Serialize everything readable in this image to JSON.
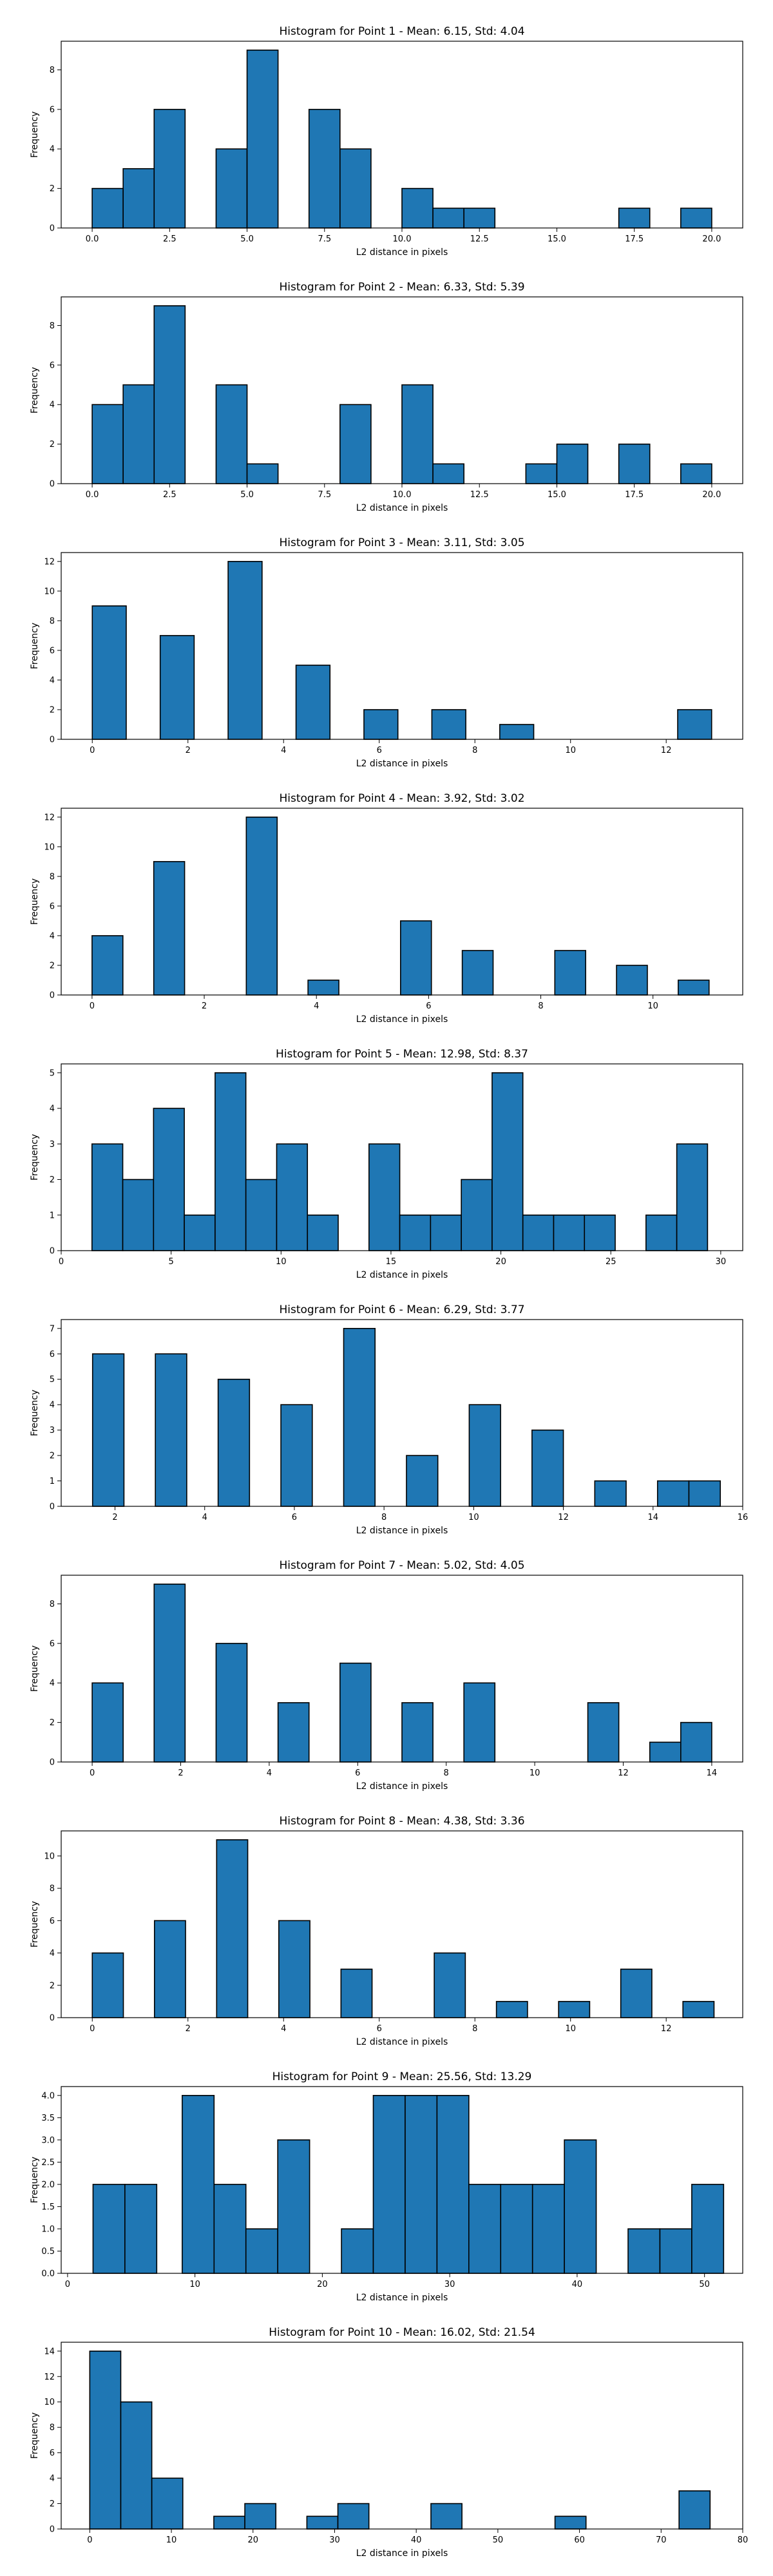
{
  "chart_data": [
    {
      "type": "bar",
      "title": "Histogram for Point 1 - Mean: 6.15, Std: 4.04",
      "xlabel": "L2 distance in pixels",
      "ylabel": "Frequency",
      "xlim": [
        -1.0,
        21.0
      ],
      "ylim": [
        0,
        9.45
      ],
      "xticks": [
        0,
        2.5,
        5,
        7.5,
        10,
        12.5,
        15,
        17.5,
        20
      ],
      "xtick_labels": [
        "0.0",
        "2.5",
        "5.0",
        "7.5",
        "10.0",
        "12.5",
        "15.0",
        "17.5",
        "20.0"
      ],
      "yticks": [
        0,
        2,
        4,
        6,
        8
      ],
      "ytick_labels": [
        "0",
        "2",
        "4",
        "6",
        "8"
      ],
      "bar_color": "#1f77b4",
      "bars": [
        {
          "x0": 0.0,
          "x1": 1.0,
          "value": 2
        },
        {
          "x0": 1.0,
          "x1": 2.0,
          "value": 3
        },
        {
          "x0": 2.0,
          "x1": 3.0,
          "value": 6
        },
        {
          "x0": 4.0,
          "x1": 5.0,
          "value": 4
        },
        {
          "x0": 5.0,
          "x1": 6.0,
          "value": 9
        },
        {
          "x0": 7.0,
          "x1": 8.0,
          "value": 6
        },
        {
          "x0": 8.0,
          "x1": 9.0,
          "value": 4
        },
        {
          "x0": 10.0,
          "x1": 11.0,
          "value": 2
        },
        {
          "x0": 11.0,
          "x1": 12.0,
          "value": 1
        },
        {
          "x0": 12.0,
          "x1": 13.0,
          "value": 1
        },
        {
          "x0": 17.0,
          "x1": 18.0,
          "value": 1
        },
        {
          "x0": 19.0,
          "x1": 20.0,
          "value": 1
        }
      ]
    },
    {
      "type": "bar",
      "title": "Histogram for Point 2 - Mean: 6.33, Std: 5.39",
      "xlabel": "L2 distance in pixels",
      "ylabel": "Frequency",
      "xlim": [
        -1.0,
        21.0
      ],
      "ylim": [
        0,
        9.45
      ],
      "xticks": [
        0,
        2.5,
        5,
        7.5,
        10,
        12.5,
        15,
        17.5,
        20
      ],
      "xtick_labels": [
        "0.0",
        "2.5",
        "5.0",
        "7.5",
        "10.0",
        "12.5",
        "15.0",
        "17.5",
        "20.0"
      ],
      "yticks": [
        0,
        2,
        4,
        6,
        8
      ],
      "ytick_labels": [
        "0",
        "2",
        "4",
        "6",
        "8"
      ],
      "bar_color": "#1f77b4",
      "bars": [
        {
          "x0": 0.0,
          "x1": 1.0,
          "value": 4
        },
        {
          "x0": 1.0,
          "x1": 2.0,
          "value": 5
        },
        {
          "x0": 2.0,
          "x1": 3.0,
          "value": 9
        },
        {
          "x0": 4.0,
          "x1": 5.0,
          "value": 5
        },
        {
          "x0": 5.0,
          "x1": 6.0,
          "value": 1
        },
        {
          "x0": 8.0,
          "x1": 9.0,
          "value": 4
        },
        {
          "x0": 10.0,
          "x1": 11.0,
          "value": 5
        },
        {
          "x0": 11.0,
          "x1": 12.0,
          "value": 1
        },
        {
          "x0": 14.0,
          "x1": 15.0,
          "value": 1
        },
        {
          "x0": 15.0,
          "x1": 16.0,
          "value": 2
        },
        {
          "x0": 17.0,
          "x1": 18.0,
          "value": 2
        },
        {
          "x0": 19.0,
          "x1": 20.0,
          "value": 1
        }
      ]
    },
    {
      "type": "bar",
      "title": "Histogram for Point 3 - Mean: 3.11, Std: 3.05",
      "xlabel": "L2 distance in pixels",
      "ylabel": "Frequency",
      "xlim": [
        -0.65,
        13.6
      ],
      "ylim": [
        0,
        12.6
      ],
      "xticks": [
        0,
        2,
        4,
        6,
        8,
        10,
        12
      ],
      "xtick_labels": [
        "0",
        "2",
        "4",
        "6",
        "8",
        "10",
        "12"
      ],
      "yticks": [
        0,
        2,
        4,
        6,
        8,
        10,
        12
      ],
      "ytick_labels": [
        "0",
        "2",
        "4",
        "6",
        "8",
        "10",
        "12"
      ],
      "bar_color": "#1f77b4",
      "bars": [
        {
          "x0": 0.0,
          "x1": 0.71,
          "value": 9
        },
        {
          "x0": 1.42,
          "x1": 2.13,
          "value": 7
        },
        {
          "x0": 2.84,
          "x1": 3.55,
          "value": 12
        },
        {
          "x0": 4.26,
          "x1": 4.97,
          "value": 5
        },
        {
          "x0": 5.68,
          "x1": 6.39,
          "value": 2
        },
        {
          "x0": 7.1,
          "x1": 7.81,
          "value": 2
        },
        {
          "x0": 8.52,
          "x1": 9.23,
          "value": 1
        },
        {
          "x0": 12.24,
          "x1": 12.95,
          "value": 2
        }
      ]
    },
    {
      "type": "bar",
      "title": "Histogram for Point 4 - Mean: 3.92, Std: 3.02",
      "xlabel": "L2 distance in pixels",
      "ylabel": "Frequency",
      "xlim": [
        -0.55,
        11.6
      ],
      "ylim": [
        0,
        12.6
      ],
      "xticks": [
        0,
        2,
        4,
        6,
        8,
        10
      ],
      "xtick_labels": [
        "0",
        "2",
        "4",
        "6",
        "8",
        "10"
      ],
      "yticks": [
        0,
        2,
        4,
        6,
        8,
        10,
        12
      ],
      "ytick_labels": [
        "0",
        "2",
        "4",
        "6",
        "8",
        "10",
        "12"
      ],
      "bar_color": "#1f77b4",
      "bars": [
        {
          "x0": 0.0,
          "x1": 0.55,
          "value": 4
        },
        {
          "x0": 1.1,
          "x1": 1.65,
          "value": 9
        },
        {
          "x0": 2.75,
          "x1": 3.3,
          "value": 12
        },
        {
          "x0": 3.85,
          "x1": 4.4,
          "value": 1
        },
        {
          "x0": 5.5,
          "x1": 6.05,
          "value": 5
        },
        {
          "x0": 6.6,
          "x1": 7.15,
          "value": 3
        },
        {
          "x0": 8.25,
          "x1": 8.8,
          "value": 3
        },
        {
          "x0": 9.35,
          "x1": 9.9,
          "value": 2
        },
        {
          "x0": 10.45,
          "x1": 11.0,
          "value": 1
        }
      ]
    },
    {
      "type": "bar",
      "title": "Histogram for Point 5 - Mean: 12.98, Std: 8.37",
      "xlabel": "L2 distance in pixels",
      "ylabel": "Frequency",
      "xlim": [
        0,
        31.0
      ],
      "ylim": [
        0,
        5.25
      ],
      "xticks": [
        0,
        5,
        10,
        15,
        20,
        25,
        30
      ],
      "xtick_labels": [
        "0",
        "5",
        "10",
        "15",
        "20",
        "25",
        "30"
      ],
      "yticks": [
        0,
        1,
        2,
        3,
        4,
        5
      ],
      "ytick_labels": [
        "0",
        "1",
        "2",
        "3",
        "4",
        "5"
      ],
      "bar_color": "#1f77b4",
      "bars": [
        {
          "x0": 1.4,
          "x1": 2.8,
          "value": 3
        },
        {
          "x0": 2.8,
          "x1": 4.2,
          "value": 2
        },
        {
          "x0": 4.2,
          "x1": 5.6,
          "value": 4
        },
        {
          "x0": 5.6,
          "x1": 7.0,
          "value": 1
        },
        {
          "x0": 7.0,
          "x1": 8.4,
          "value": 5
        },
        {
          "x0": 8.4,
          "x1": 9.8,
          "value": 2
        },
        {
          "x0": 9.8,
          "x1": 11.2,
          "value": 3
        },
        {
          "x0": 11.2,
          "x1": 12.6,
          "value": 1
        },
        {
          "x0": 14.0,
          "x1": 15.4,
          "value": 3
        },
        {
          "x0": 15.4,
          "x1": 16.8,
          "value": 1
        },
        {
          "x0": 16.8,
          "x1": 18.2,
          "value": 1
        },
        {
          "x0": 18.2,
          "x1": 19.6,
          "value": 2
        },
        {
          "x0": 19.6,
          "x1": 21.0,
          "value": 5
        },
        {
          "x0": 21.0,
          "x1": 22.4,
          "value": 1
        },
        {
          "x0": 22.4,
          "x1": 23.8,
          "value": 1
        },
        {
          "x0": 23.8,
          "x1": 25.2,
          "value": 1
        },
        {
          "x0": 26.6,
          "x1": 28.0,
          "value": 1
        },
        {
          "x0": 28.0,
          "x1": 29.4,
          "value": 3
        }
      ]
    },
    {
      "type": "bar",
      "title": "Histogram for Point 6 - Mean: 6.29, Std: 3.77",
      "xlabel": "L2 distance in pixels",
      "ylabel": "Frequency",
      "xlim": [
        0.8,
        16.0
      ],
      "ylim": [
        0,
        7.35
      ],
      "xticks": [
        2,
        4,
        6,
        8,
        10,
        12,
        14,
        16
      ],
      "xtick_labels": [
        "2",
        "4",
        "6",
        "8",
        "10",
        "12",
        "14",
        "16"
      ],
      "yticks": [
        0,
        1,
        2,
        3,
        4,
        5,
        6,
        7
      ],
      "ytick_labels": [
        "0",
        "1",
        "2",
        "3",
        "4",
        "5",
        "6",
        "7"
      ],
      "bar_color": "#1f77b4",
      "bars": [
        {
          "x0": 1.5,
          "x1": 2.2,
          "value": 6
        },
        {
          "x0": 2.9,
          "x1": 3.6,
          "value": 6
        },
        {
          "x0": 4.3,
          "x1": 5.0,
          "value": 5
        },
        {
          "x0": 5.7,
          "x1": 6.4,
          "value": 4
        },
        {
          "x0": 7.1,
          "x1": 7.8,
          "value": 7
        },
        {
          "x0": 8.5,
          "x1": 9.2,
          "value": 2
        },
        {
          "x0": 9.9,
          "x1": 10.6,
          "value": 4
        },
        {
          "x0": 11.3,
          "x1": 12.0,
          "value": 3
        },
        {
          "x0": 12.7,
          "x1": 13.4,
          "value": 1
        },
        {
          "x0": 14.1,
          "x1": 14.8,
          "value": 1
        },
        {
          "x0": 14.8,
          "x1": 15.5,
          "value": 1
        }
      ]
    },
    {
      "type": "bar",
      "title": "Histogram for Point 7 - Mean: 5.02, Std: 4.05",
      "xlabel": "L2 distance in pixels",
      "ylabel": "Frequency",
      "xlim": [
        -0.7,
        14.7
      ],
      "ylim": [
        0,
        9.45
      ],
      "xticks": [
        0,
        2,
        4,
        6,
        8,
        10,
        12,
        14
      ],
      "xtick_labels": [
        "0",
        "2",
        "4",
        "6",
        "8",
        "10",
        "12",
        "14"
      ],
      "yticks": [
        0,
        2,
        4,
        6,
        8
      ],
      "ytick_labels": [
        "0",
        "2",
        "4",
        "6",
        "8"
      ],
      "bar_color": "#1f77b4",
      "bars": [
        {
          "x0": 0.0,
          "x1": 0.7,
          "value": 4
        },
        {
          "x0": 1.4,
          "x1": 2.1,
          "value": 9
        },
        {
          "x0": 2.8,
          "x1": 3.5,
          "value": 6
        },
        {
          "x0": 4.2,
          "x1": 4.9,
          "value": 3
        },
        {
          "x0": 5.6,
          "x1": 6.3,
          "value": 5
        },
        {
          "x0": 7.0,
          "x1": 7.7,
          "value": 3
        },
        {
          "x0": 8.4,
          "x1": 9.1,
          "value": 4
        },
        {
          "x0": 11.2,
          "x1": 11.9,
          "value": 3
        },
        {
          "x0": 12.6,
          "x1": 13.3,
          "value": 1
        },
        {
          "x0": 13.3,
          "x1": 14.0,
          "value": 2
        }
      ]
    },
    {
      "type": "bar",
      "title": "Histogram for Point 8 - Mean: 4.38, Std: 3.36",
      "xlabel": "L2 distance in pixels",
      "ylabel": "Frequency",
      "xlim": [
        -0.65,
        13.6
      ],
      "ylim": [
        0,
        11.55
      ],
      "xticks": [
        0,
        2,
        4,
        6,
        8,
        10,
        12
      ],
      "xtick_labels": [
        "0",
        "2",
        "4",
        "6",
        "8",
        "10",
        "12"
      ],
      "yticks": [
        0,
        2,
        4,
        6,
        8,
        10
      ],
      "ytick_labels": [
        "0",
        "2",
        "4",
        "6",
        "8",
        "10"
      ],
      "bar_color": "#1f77b4",
      "bars": [
        {
          "x0": 0.0,
          "x1": 0.65,
          "value": 4
        },
        {
          "x0": 1.3,
          "x1": 1.95,
          "value": 6
        },
        {
          "x0": 2.6,
          "x1": 3.25,
          "value": 11
        },
        {
          "x0": 3.9,
          "x1": 4.55,
          "value": 6
        },
        {
          "x0": 5.2,
          "x1": 5.85,
          "value": 3
        },
        {
          "x0": 7.15,
          "x1": 7.8,
          "value": 4
        },
        {
          "x0": 8.45,
          "x1": 9.1,
          "value": 1
        },
        {
          "x0": 9.75,
          "x1": 10.4,
          "value": 1
        },
        {
          "x0": 11.05,
          "x1": 11.7,
          "value": 3
        },
        {
          "x0": 12.35,
          "x1": 13.0,
          "value": 1
        }
      ]
    },
    {
      "type": "bar",
      "title": "Histogram for Point 9 - Mean: 25.56, Std: 13.29",
      "xlabel": "L2 distance in pixels",
      "ylabel": "Frequency",
      "xlim": [
        -0.5,
        53.0
      ],
      "ylim": [
        0,
        4.2
      ],
      "xticks": [
        0,
        10,
        20,
        30,
        40,
        50
      ],
      "xtick_labels": [
        "0",
        "10",
        "20",
        "30",
        "40",
        "50"
      ],
      "yticks": [
        0,
        0.5,
        1.0,
        1.5,
        2.0,
        2.5,
        3.0,
        3.5,
        4.0
      ],
      "ytick_labels": [
        "0.0",
        "0.5",
        "1.0",
        "1.5",
        "2.0",
        "2.5",
        "3.0",
        "3.5",
        "4.0"
      ],
      "bar_color": "#1f77b4",
      "bars": [
        {
          "x0": 2.0,
          "x1": 4.5,
          "value": 2
        },
        {
          "x0": 4.5,
          "x1": 7.0,
          "value": 2
        },
        {
          "x0": 9.0,
          "x1": 11.5,
          "value": 4
        },
        {
          "x0": 11.5,
          "x1": 14.0,
          "value": 2
        },
        {
          "x0": 14.0,
          "x1": 16.5,
          "value": 1
        },
        {
          "x0": 16.5,
          "x1": 19.0,
          "value": 3
        },
        {
          "x0": 21.5,
          "x1": 24.0,
          "value": 1
        },
        {
          "x0": 24.0,
          "x1": 26.5,
          "value": 4
        },
        {
          "x0": 26.5,
          "x1": 29.0,
          "value": 4
        },
        {
          "x0": 29.0,
          "x1": 31.5,
          "value": 4
        },
        {
          "x0": 31.5,
          "x1": 34.0,
          "value": 2
        },
        {
          "x0": 34.0,
          "x1": 36.5,
          "value": 2
        },
        {
          "x0": 36.5,
          "x1": 39.0,
          "value": 2
        },
        {
          "x0": 39.0,
          "x1": 41.5,
          "value": 3
        },
        {
          "x0": 44.0,
          "x1": 46.5,
          "value": 1
        },
        {
          "x0": 46.5,
          "x1": 49.0,
          "value": 1
        },
        {
          "x0": 49.0,
          "x1": 51.5,
          "value": 2
        }
      ]
    },
    {
      "type": "bar",
      "title": "Histogram for Point 10 - Mean: 16.02, Std: 21.54",
      "xlabel": "L2 distance in pixels",
      "ylabel": "Frequency",
      "xlim": [
        -3.5,
        80.0
      ],
      "ylim": [
        0,
        14.7
      ],
      "xticks": [
        0,
        10,
        20,
        30,
        40,
        50,
        60,
        70,
        80
      ],
      "xtick_labels": [
        "0",
        "10",
        "20",
        "30",
        "40",
        "50",
        "60",
        "70",
        "80"
      ],
      "yticks": [
        0,
        2,
        4,
        6,
        8,
        10,
        12,
        14
      ],
      "ytick_labels": [
        "0",
        "2",
        "4",
        "6",
        "8",
        "10",
        "12",
        "14"
      ],
      "bar_color": "#1f77b4",
      "bars": [
        {
          "x0": 0.0,
          "x1": 3.8,
          "value": 14
        },
        {
          "x0": 3.8,
          "x1": 7.6,
          "value": 10
        },
        {
          "x0": 7.6,
          "x1": 11.4,
          "value": 4
        },
        {
          "x0": 15.2,
          "x1": 19.0,
          "value": 1
        },
        {
          "x0": 19.0,
          "x1": 22.8,
          "value": 2
        },
        {
          "x0": 26.6,
          "x1": 30.4,
          "value": 1
        },
        {
          "x0": 30.4,
          "x1": 34.2,
          "value": 2
        },
        {
          "x0": 41.8,
          "x1": 45.6,
          "value": 2
        },
        {
          "x0": 57.0,
          "x1": 60.8,
          "value": 1
        },
        {
          "x0": 72.2,
          "x1": 76.0,
          "value": 3
        }
      ]
    }
  ]
}
